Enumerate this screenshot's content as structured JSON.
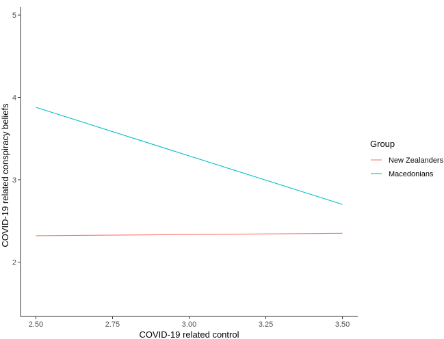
{
  "chart_data": {
    "type": "line",
    "xlabel": "COVID-19 related control",
    "ylabel": "COVID-19 related conspiracy beliefs",
    "xlim": [
      2.45,
      3.55
    ],
    "ylim": [
      1.34,
      5.1
    ],
    "x_ticks": [
      "2.50",
      "2.75",
      "3.00",
      "3.25",
      "3.50"
    ],
    "x_tick_values": [
      2.5,
      2.75,
      3.0,
      3.25,
      3.5
    ],
    "y_ticks": [
      "2",
      "3",
      "4",
      "5"
    ],
    "y_tick_values": [
      2,
      3,
      4,
      5
    ],
    "grid": false,
    "legend": {
      "title": "Group",
      "position": "right"
    },
    "series": [
      {
        "name": "New Zealanders",
        "color": "#F8766D",
        "x": [
          2.5,
          3.5
        ],
        "y": [
          2.32,
          2.35
        ]
      },
      {
        "name": "Macedonians",
        "color": "#00BFC4",
        "x": [
          2.5,
          3.5
        ],
        "y": [
          3.88,
          2.7
        ]
      }
    ]
  }
}
